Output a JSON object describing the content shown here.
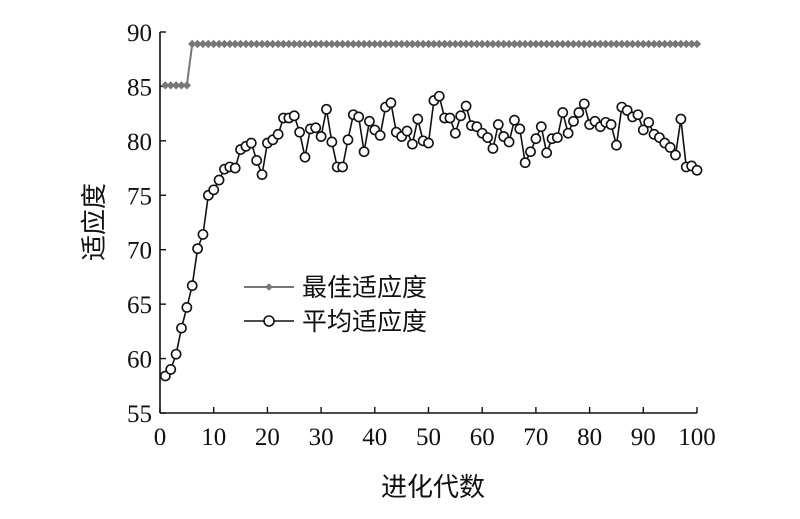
{
  "chart_data": {
    "type": "line",
    "title": "",
    "xlabel": "进化代数",
    "ylabel": "适应度",
    "xlim": [
      0,
      100
    ],
    "ylim": [
      55,
      90
    ],
    "xticks": [
      0,
      10,
      20,
      30,
      40,
      50,
      60,
      70,
      80,
      90,
      100
    ],
    "yticks": [
      55,
      60,
      65,
      70,
      75,
      80,
      85,
      90
    ],
    "grid": false,
    "legend_position": "center-left",
    "series": [
      {
        "name": "最佳适应度",
        "color": "#777777",
        "marker": "diamond",
        "x": [
          1,
          2,
          3,
          4,
          5,
          6,
          7,
          8,
          9,
          10,
          11,
          12,
          13,
          14,
          15,
          16,
          17,
          18,
          19,
          20,
          21,
          22,
          23,
          24,
          25,
          26,
          27,
          28,
          29,
          30,
          31,
          32,
          33,
          34,
          35,
          36,
          37,
          38,
          39,
          40,
          41,
          42,
          43,
          44,
          45,
          46,
          47,
          48,
          49,
          50,
          51,
          52,
          53,
          54,
          55,
          56,
          57,
          58,
          59,
          60,
          61,
          62,
          63,
          64,
          65,
          66,
          67,
          68,
          69,
          70,
          71,
          72,
          73,
          74,
          75,
          76,
          77,
          78,
          79,
          80,
          81,
          82,
          83,
          84,
          85,
          86,
          87,
          88,
          89,
          90,
          91,
          92,
          93,
          94,
          95,
          96,
          97,
          98,
          99,
          100
        ],
        "y": [
          85.1,
          85.1,
          85.1,
          85.1,
          85.1,
          88.9,
          88.9,
          88.9,
          88.9,
          88.9,
          88.9,
          88.9,
          88.9,
          88.9,
          88.9,
          88.9,
          88.9,
          88.9,
          88.9,
          88.9,
          88.9,
          88.9,
          88.9,
          88.9,
          88.9,
          88.9,
          88.9,
          88.9,
          88.9,
          88.9,
          88.9,
          88.9,
          88.9,
          88.9,
          88.9,
          88.9,
          88.9,
          88.9,
          88.9,
          88.9,
          88.9,
          88.9,
          88.9,
          88.9,
          88.9,
          88.9,
          88.9,
          88.9,
          88.9,
          88.9,
          88.9,
          88.9,
          88.9,
          88.9,
          88.9,
          88.9,
          88.9,
          88.9,
          88.9,
          88.9,
          88.9,
          88.9,
          88.9,
          88.9,
          88.9,
          88.9,
          88.9,
          88.9,
          88.9,
          88.9,
          88.9,
          88.9,
          88.9,
          88.9,
          88.9,
          88.9,
          88.9,
          88.9,
          88.9,
          88.9,
          88.9,
          88.9,
          88.9,
          88.9,
          88.9,
          88.9,
          88.9,
          88.9,
          88.9,
          88.9,
          88.9,
          88.9,
          88.9,
          88.9,
          88.9,
          88.9,
          88.9,
          88.9,
          88.9,
          88.9
        ]
      },
      {
        "name": "平均适应度",
        "color": "#111111",
        "marker": "circle",
        "x": [
          1,
          2,
          3,
          4,
          5,
          6,
          7,
          8,
          9,
          10,
          11,
          12,
          13,
          14,
          15,
          16,
          17,
          18,
          19,
          20,
          21,
          22,
          23,
          24,
          25,
          26,
          27,
          28,
          29,
          30,
          31,
          32,
          33,
          34,
          35,
          36,
          37,
          38,
          39,
          40,
          41,
          42,
          43,
          44,
          45,
          46,
          47,
          48,
          49,
          50,
          51,
          52,
          53,
          54,
          55,
          56,
          57,
          58,
          59,
          60,
          61,
          62,
          63,
          64,
          65,
          66,
          67,
          68,
          69,
          70,
          71,
          72,
          73,
          74,
          75,
          76,
          77,
          78,
          79,
          80,
          81,
          82,
          83,
          84,
          85,
          86,
          87,
          88,
          89,
          90,
          91,
          92,
          93,
          94,
          95,
          96,
          97,
          98,
          99,
          100
        ],
        "y": [
          58.4,
          59.0,
          60.4,
          62.8,
          64.7,
          66.7,
          70.1,
          71.4,
          75.0,
          75.5,
          76.4,
          77.4,
          77.6,
          77.5,
          79.2,
          79.5,
          79.8,
          78.2,
          76.9,
          79.8,
          80.1,
          80.6,
          82.1,
          82.1,
          82.3,
          80.8,
          78.5,
          81.1,
          81.2,
          80.4,
          82.9,
          79.9,
          77.6,
          77.6,
          80.1,
          82.4,
          82.2,
          79.0,
          81.8,
          81.0,
          80.5,
          83.1,
          83.5,
          80.8,
          80.4,
          80.9,
          79.7,
          82.0,
          80.0,
          79.8,
          83.7,
          84.1,
          82.1,
          82.1,
          80.7,
          82.3,
          83.2,
          81.4,
          81.3,
          80.7,
          80.3,
          79.3,
          81.5,
          80.4,
          79.9,
          81.9,
          81.1,
          78.0,
          79.0,
          80.2,
          81.3,
          78.9,
          80.2,
          80.3,
          82.6,
          80.7,
          81.8,
          82.6,
          83.4,
          81.5,
          81.8,
          81.3,
          81.7,
          81.5,
          79.6,
          83.1,
          82.8,
          82.2,
          82.4,
          81.0,
          81.7,
          80.6,
          80.3,
          79.8,
          79.4,
          78.7,
          82.0,
          77.6,
          77.7,
          77.3
        ]
      }
    ]
  }
}
